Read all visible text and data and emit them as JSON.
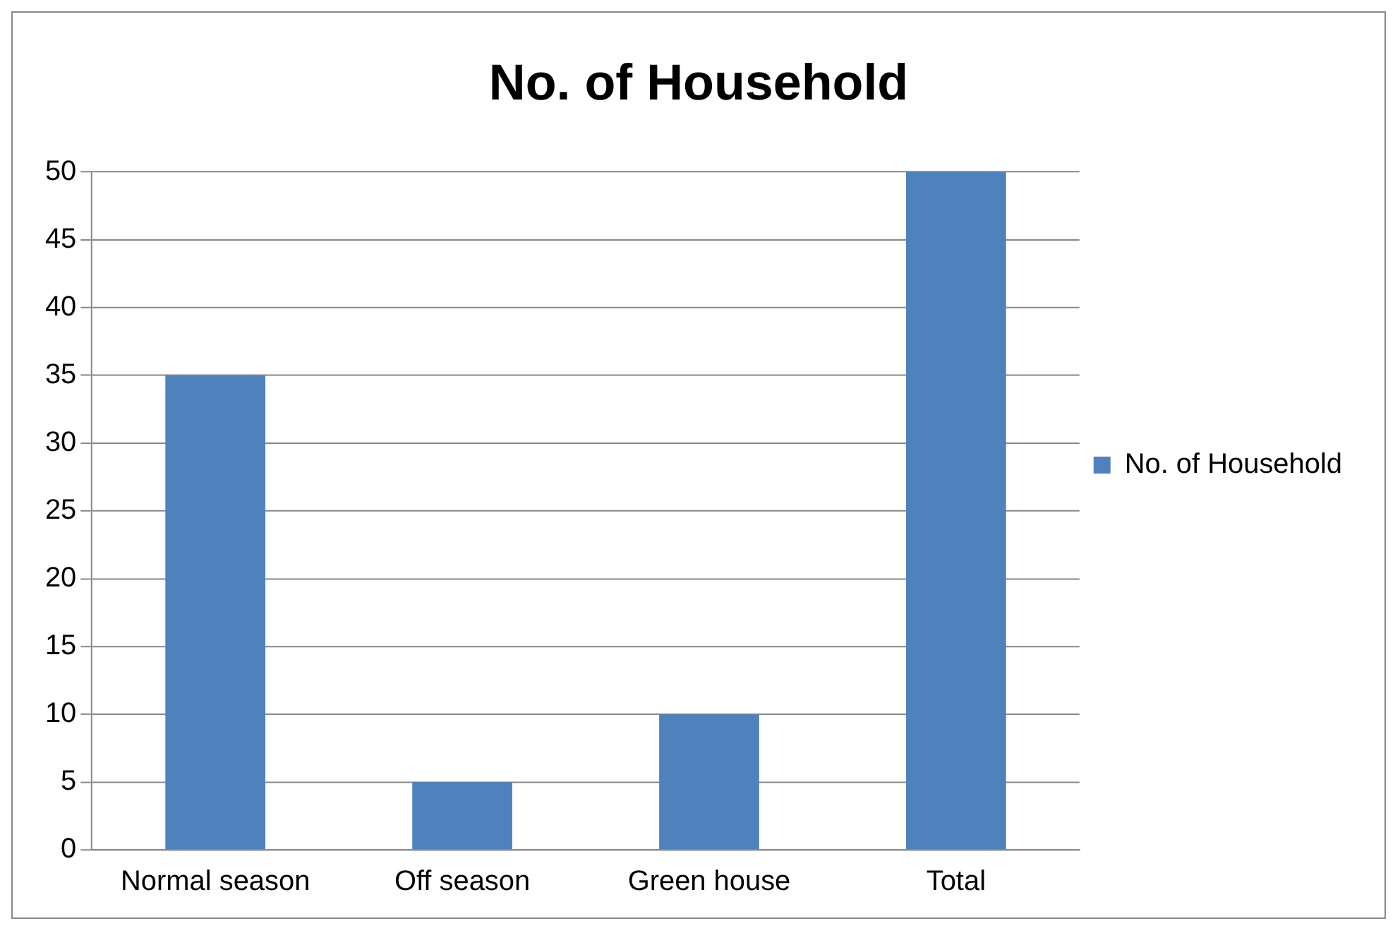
{
  "chart_data": {
    "type": "bar",
    "title": "No. of Household",
    "categories": [
      "Normal season",
      "Off season",
      "Green house",
      "Total"
    ],
    "series": [
      {
        "name": "No. of Household",
        "color": "#4f81bd",
        "values": [
          35,
          5,
          10,
          50
        ]
      }
    ],
    "ylim": [
      0,
      50
    ],
    "yticks": [
      0,
      5,
      10,
      15,
      20,
      25,
      30,
      35,
      40,
      45,
      50
    ],
    "grid": "y",
    "legend": "right"
  }
}
